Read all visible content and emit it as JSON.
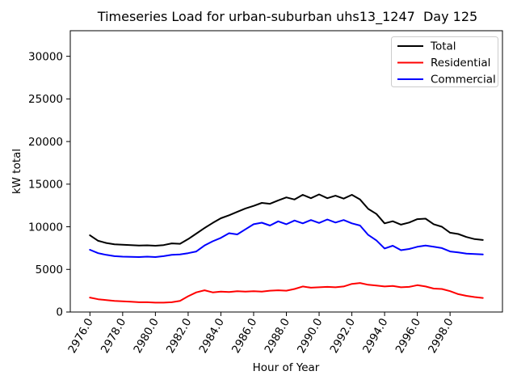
{
  "chart_data": {
    "type": "line",
    "title": "Timeseries Load for urban-suburban uhs13_1247  Day 125",
    "xlabel": "Hour of Year",
    "ylabel": "kW total",
    "grid": false,
    "legend_position": "upper right",
    "xlim": [
      2974.8,
      3001.2
    ],
    "ylim": [
      0,
      33000
    ],
    "x_ticks": [
      2976,
      2978,
      2980,
      2982,
      2984,
      2986,
      2988,
      2990,
      2992,
      2994,
      2996,
      2998
    ],
    "x_tick_labels": [
      "2976.0",
      "2978.0",
      "2980.0",
      "2982.0",
      "2984.0",
      "2986.0",
      "2988.0",
      "2990.0",
      "2992.0",
      "2994.0",
      "2996.0",
      "2998.0"
    ],
    "y_ticks": [
      0,
      5000,
      10000,
      15000,
      20000,
      25000,
      30000
    ],
    "y_tick_labels": [
      "0",
      "5000",
      "10000",
      "15000",
      "20000",
      "25000",
      "30000"
    ],
    "x": [
      2976,
      2976.5,
      2977,
      2977.5,
      2978,
      2978.5,
      2979,
      2979.5,
      2980,
      2980.5,
      2981,
      2981.5,
      2982,
      2982.5,
      2983,
      2983.5,
      2984,
      2984.5,
      2985,
      2985.5,
      2986,
      2986.5,
      2987,
      2987.5,
      2988,
      2988.5,
      2989,
      2989.5,
      2990,
      2990.5,
      2991,
      2991.5,
      2992,
      2992.5,
      2993,
      2993.5,
      2994,
      2994.5,
      2995,
      2995.5,
      2996,
      2996.5,
      2997,
      2997.5,
      2998,
      2998.5,
      2999,
      2999.5,
      3000
    ],
    "series": [
      {
        "name": "Total",
        "color": "#000000",
        "values": [
          9000,
          8350,
          8100,
          7950,
          7900,
          7850,
          7800,
          7820,
          7780,
          7850,
          8050,
          8000,
          8550,
          9200,
          9850,
          10450,
          11000,
          11350,
          11750,
          12150,
          12450,
          12800,
          12700,
          13100,
          13450,
          13200,
          13750,
          13350,
          13800,
          13350,
          13650,
          13300,
          13750,
          13200,
          12100,
          11500,
          10400,
          10650,
          10250,
          10500,
          10900,
          10950,
          10300,
          10000,
          9300,
          9150,
          8800,
          8550,
          8450
        ]
      },
      {
        "name": "Residential",
        "color": "#ff0000",
        "values": [
          1700,
          1500,
          1400,
          1300,
          1250,
          1200,
          1150,
          1150,
          1100,
          1100,
          1150,
          1300,
          1850,
          2300,
          2550,
          2300,
          2400,
          2350,
          2450,
          2400,
          2450,
          2400,
          2500,
          2550,
          2500,
          2700,
          3000,
          2850,
          2900,
          2950,
          2900,
          3000,
          3300,
          3400,
          3200,
          3100,
          3000,
          3050,
          2900,
          2950,
          3150,
          3000,
          2750,
          2700,
          2450,
          2100,
          1900,
          1750,
          1650
        ]
      },
      {
        "name": "Commercial",
        "color": "#0000ff",
        "values": [
          7300,
          6900,
          6700,
          6550,
          6500,
          6480,
          6450,
          6500,
          6450,
          6550,
          6700,
          6750,
          6900,
          7100,
          7800,
          8300,
          8700,
          9250,
          9100,
          9700,
          10300,
          10480,
          10150,
          10640,
          10300,
          10730,
          10400,
          10790,
          10450,
          10860,
          10500,
          10790,
          10400,
          10150,
          9050,
          8400,
          7450,
          7780,
          7250,
          7400,
          7650,
          7800,
          7650,
          7500,
          7100,
          7000,
          6850,
          6800,
          6750
        ]
      }
    ]
  }
}
